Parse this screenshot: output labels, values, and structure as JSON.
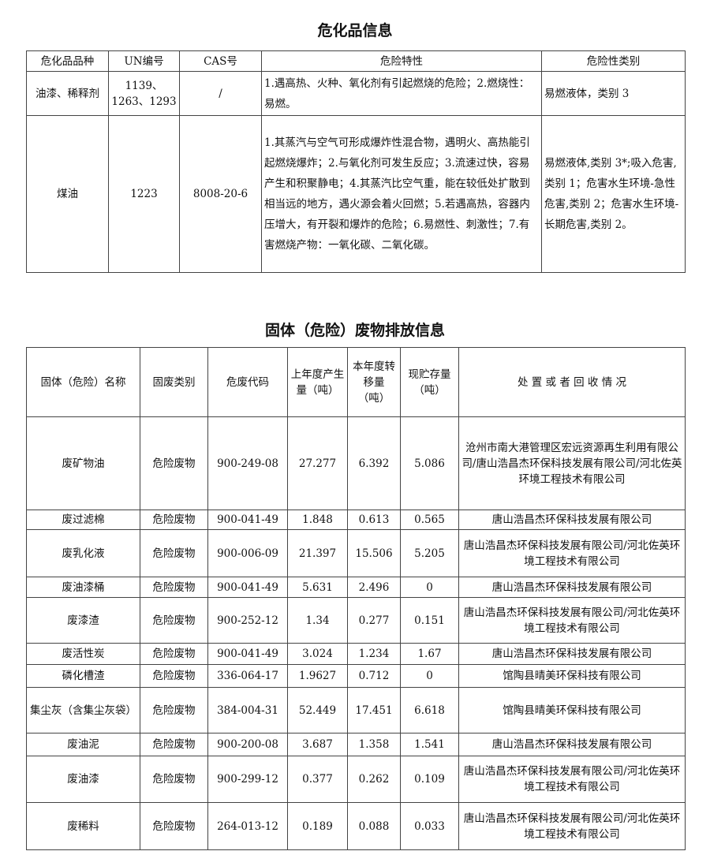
{
  "hazchem": {
    "title": "危化品信息",
    "headers": [
      "危化品品种",
      "UN编号",
      "CAS号",
      "危险特性",
      "危险性类别"
    ],
    "rows": [
      [
        "油漆、稀释剂",
        "1139、1263、1293",
        "/",
        "1.遇高热、火种、氧化剂有引起燃烧的危险；2.燃烧性：易燃。",
        "易燃液体，类别 3"
      ],
      [
        "煤油",
        "1223",
        "8008-20-6",
        "1.其蒸汽与空气可形成爆炸性混合物，遇明火、高热能引起燃烧爆炸；2.与氧化剂可发生反应；3.流速过快，容易产生和积聚静电；4.其蒸汽比空气重，能在较低处扩散到相当远的地方，遇火源会着火回燃；5.若遇高热，容器内压增大，有开裂和爆炸的危险；6.易燃性、刺激性；7.有害燃烧产物：一氧化碳、二氧化碳。",
        "易燃液体,类别 3*;吸入危害,类别 1；危害水生环境-急性危害,类别 2；危害水生环境-长期危害,类别 2。"
      ]
    ]
  },
  "waste": {
    "title": "固体（危险）废物排放信息",
    "headers": [
      "固体（危险）名称",
      "固废类别",
      "危废代码",
      "上年度产生量（吨）",
      "本年度转移量（吨）",
      "现贮存量（吨）",
      "处 置 或 者 回 收 情 况"
    ],
    "rows": [
      [
        "废矿物油",
        "危险废物",
        "900-249-08",
        "27.277",
        "6.392",
        "5.086",
        "沧州市南大港管理区宏远资源再生利用有限公司/唐山浩昌杰环保科技发展有限公司/河北佐英环境工程技术有限公司"
      ],
      [
        "废过滤棉",
        "危险废物",
        "900-041-49",
        "1.848",
        "0.613",
        "0.565",
        "唐山浩昌杰环保科技发展有限公司"
      ],
      [
        "废乳化液",
        "危险废物",
        "900-006-09",
        "21.397",
        "15.506",
        "5.205",
        "唐山浩昌杰环保科技发展有限公司/河北佐英环境工程技术有限公司"
      ],
      [
        "废油漆桶",
        "危险废物",
        "900-041-49",
        "5.631",
        "2.496",
        "0",
        "唐山浩昌杰环保科技发展有限公司"
      ],
      [
        "废漆渣",
        "危险废物",
        "900-252-12",
        "1.34",
        "0.277",
        "0.151",
        "唐山浩昌杰环保科技发展有限公司/河北佐英环境工程技术有限公司"
      ],
      [
        "废活性炭",
        "危险废物",
        "900-041-49",
        "3.024",
        "1.234",
        "1.67",
        "唐山浩昌杰环保科技发展有限公司"
      ],
      [
        "磷化槽渣",
        "危险废物",
        "336-064-17",
        "1.9627",
        "0.712",
        "0",
        "馆陶县晴美环保科技有限公司"
      ],
      [
        "集尘灰（含集尘灰袋）",
        "危险废物",
        "384-004-31",
        "52.449",
        "17.451",
        "6.618",
        "馆陶县晴美环保科技有限公司"
      ],
      [
        "废油泥",
        "危险废物",
        "900-200-08",
        "3.687",
        "1.358",
        "1.541",
        "唐山浩昌杰环保科技发展有限公司"
      ],
      [
        "废油漆",
        "危险废物",
        "900-299-12",
        "0.377",
        "0.262",
        "0.109",
        "唐山浩昌杰环保科技发展有限公司/河北佐英环境工程技术有限公司"
      ],
      [
        "废稀料",
        "危险废物",
        "264-013-12",
        "0.189",
        "0.088",
        "0.033",
        "唐山浩昌杰环保科技发展有限公司/河北佐英环境工程技术有限公司"
      ]
    ]
  }
}
